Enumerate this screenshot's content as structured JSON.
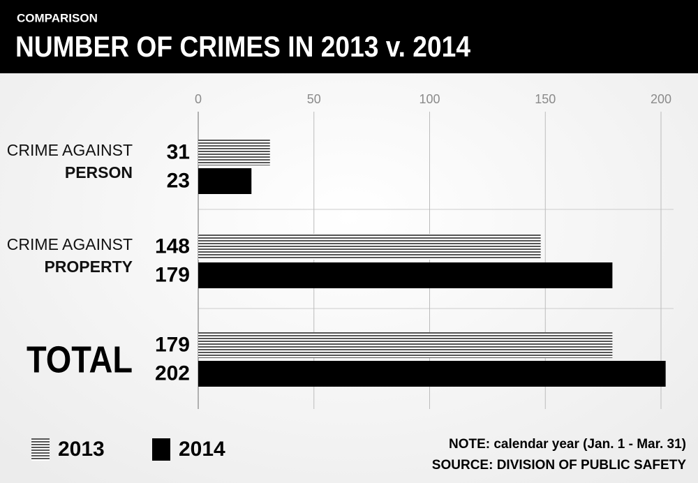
{
  "chart_data": {
    "type": "bar",
    "orientation": "horizontal",
    "subtitle": "COMPARISON",
    "title": "NUMBER OF CRIMES IN 2013 v. 2014",
    "categories": [
      [
        "CRIME AGAINST",
        "PERSON"
      ],
      [
        "CRIME AGAINST",
        "PROPERTY"
      ],
      [
        "TOTAL"
      ]
    ],
    "series": [
      {
        "name": "2013",
        "color": "#555555",
        "pattern": "horizontal-stripes",
        "values": [
          31,
          148,
          179
        ]
      },
      {
        "name": "2014",
        "color": "#000000",
        "values": [
          23,
          179,
          202
        ]
      }
    ],
    "xlim": [
      0,
      200
    ],
    "xticks": [
      0,
      50,
      100,
      150,
      200
    ],
    "grid": true,
    "legend": "bottom-left",
    "notes": [
      "NOTE: calendar year (Jan. 1 - Mar. 31)",
      "SOURCE: DIVISION OF PUBLIC SAFETY"
    ]
  }
}
